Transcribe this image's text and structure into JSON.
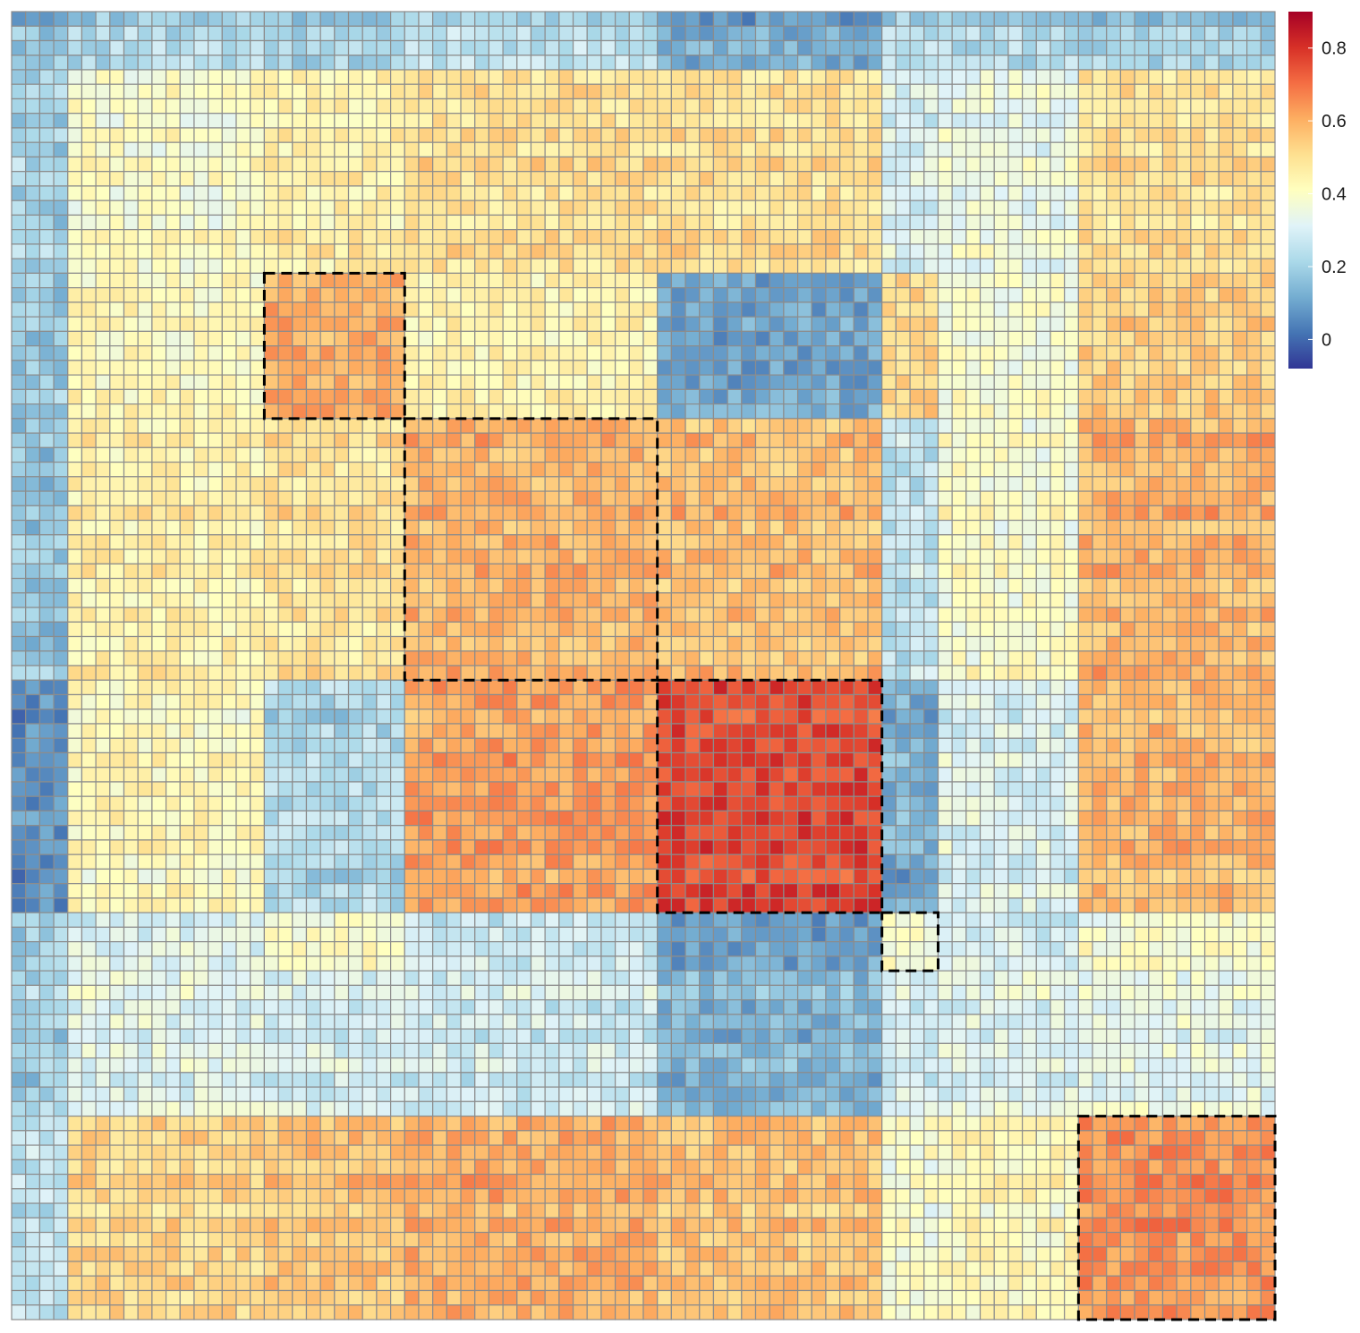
{
  "chart_data": {
    "type": "heatmap",
    "title": "",
    "xlabel": "",
    "ylabel": "",
    "n_rows": 90,
    "n_cols": 90,
    "cluster_boundaries": [
      0,
      4,
      18,
      28,
      46,
      62,
      66,
      76,
      90
    ],
    "block_values": [
      [
        0.15,
        0.2,
        0.18,
        0.22,
        0.1,
        0.22,
        0.2,
        0.18
      ],
      [
        0.2,
        0.4,
        0.46,
        0.5,
        0.5,
        0.3,
        0.35,
        0.5
      ],
      [
        0.2,
        0.44,
        0.62,
        0.46,
        0.12,
        0.54,
        0.4,
        0.56
      ],
      [
        0.18,
        0.46,
        0.5,
        0.6,
        0.58,
        0.26,
        0.4,
        0.6
      ],
      [
        0.06,
        0.42,
        0.22,
        0.62,
        0.76,
        0.12,
        0.3,
        0.58
      ],
      [
        0.2,
        0.32,
        0.4,
        0.28,
        0.1,
        0.4,
        0.3,
        0.4
      ],
      [
        0.2,
        0.32,
        0.3,
        0.28,
        0.14,
        0.3,
        0.32,
        0.34
      ],
      [
        0.25,
        0.52,
        0.56,
        0.6,
        0.56,
        0.38,
        0.42,
        0.64
      ]
    ],
    "highlighted_clusters": [
      {
        "rows": [
          18,
          27
        ],
        "cols": [
          18,
          27
        ]
      },
      {
        "rows": [
          28,
          45
        ],
        "cols": [
          28,
          45
        ]
      },
      {
        "rows": [
          46,
          61
        ],
        "cols": [
          46,
          61
        ]
      },
      {
        "rows": [
          62,
          65
        ],
        "cols": [
          62,
          65
        ]
      },
      {
        "rows": [
          76,
          89
        ],
        "cols": [
          76,
          89
        ]
      }
    ],
    "colorbar": {
      "min": -0.08,
      "max": 0.9,
      "ticks": [
        0,
        0.2,
        0.4,
        0.6,
        0.8
      ],
      "tick_labels": [
        "0",
        "0.2",
        "0.4",
        "0.6",
        "0.8"
      ],
      "palette": [
        "#313695",
        "#4575b4",
        "#74add1",
        "#abd9e9",
        "#e0f3f8",
        "#ffffbf",
        "#fee090",
        "#fdae61",
        "#f46d43",
        "#d73027",
        "#a50026"
      ]
    },
    "grid": true,
    "legend_position": "top-right",
    "cell_border_color": "#8c8c8c"
  }
}
